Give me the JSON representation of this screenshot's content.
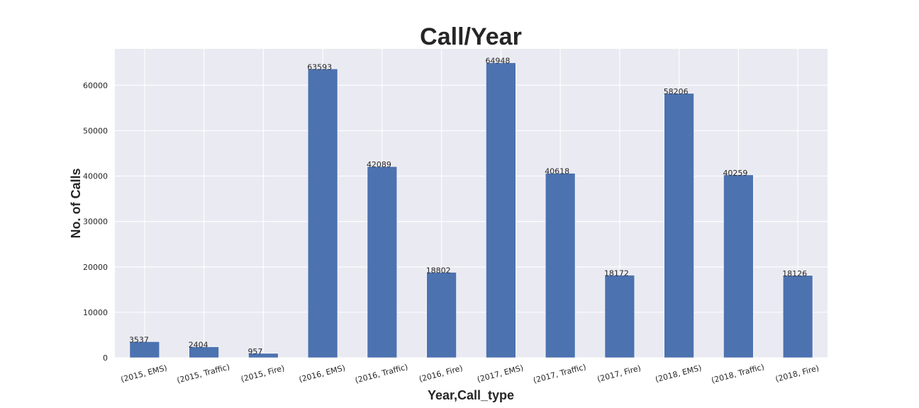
{
  "chart_data": {
    "type": "bar",
    "title": "Call/Year",
    "xlabel": "Year,Call_type",
    "ylabel": "No. of Calls",
    "categories": [
      "(2015, EMS)",
      "(2015, Traffic)",
      "(2015, Fire)",
      "(2016, EMS)",
      "(2016, Traffic)",
      "(2016, Fire)",
      "(2017, EMS)",
      "(2017, Traffic)",
      "(2017, Fire)",
      "(2018, EMS)",
      "(2018, Traffic)",
      "(2018, Fire)"
    ],
    "values": [
      3537,
      2404,
      957,
      63593,
      42089,
      18802,
      64948,
      40618,
      18172,
      58206,
      40259,
      18126
    ],
    "data_labels": [
      "3537",
      "2404",
      "957",
      "63593",
      "42089",
      "18802",
      "64948",
      "40618",
      "18172",
      "58206",
      "40259",
      "18126"
    ],
    "ylim": [
      0,
      68000
    ],
    "yticks": [
      0,
      10000,
      20000,
      30000,
      40000,
      50000,
      60000
    ],
    "ytick_labels": [
      "0",
      "10000",
      "20000",
      "30000",
      "40000",
      "50000",
      "60000"
    ],
    "grid": true,
    "legend": "none",
    "colors": {
      "bar": "#4c72b0",
      "plot_background": "#eaeaf2",
      "grid": "#ffffff",
      "text": "#262626"
    }
  }
}
